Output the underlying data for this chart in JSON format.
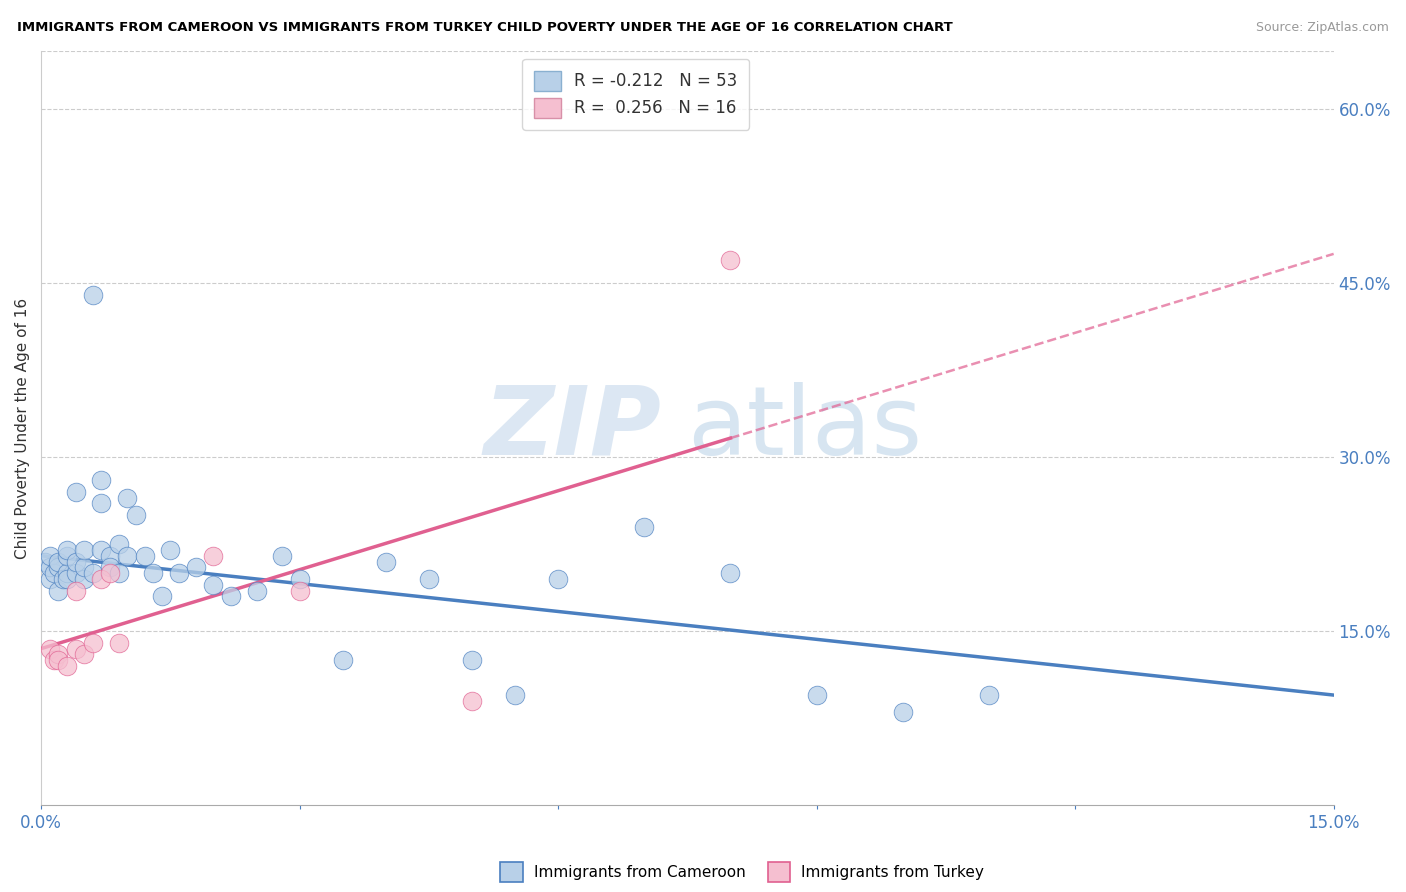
{
  "title": "IMMIGRANTS FROM CAMEROON VS IMMIGRANTS FROM TURKEY CHILD POVERTY UNDER THE AGE OF 16 CORRELATION CHART",
  "source": "Source: ZipAtlas.com",
  "ylabel": "Child Poverty Under the Age of 16",
  "legend_label1": "Immigrants from Cameroon",
  "legend_label2": "Immigrants from Turkey",
  "R1": -0.212,
  "N1": 53,
  "R2": 0.256,
  "N2": 16,
  "color1": "#b8d0e8",
  "color2": "#f5bfd0",
  "line_color1": "#4a7fc0",
  "line_color2": "#e06090",
  "xlim": [
    0,
    0.15
  ],
  "ylim": [
    0,
    0.65
  ],
  "yticks": [
    0.15,
    0.3,
    0.45,
    0.6
  ],
  "cameroon_x": [
    0.0005,
    0.001,
    0.001,
    0.001,
    0.0015,
    0.002,
    0.002,
    0.002,
    0.0025,
    0.003,
    0.003,
    0.003,
    0.003,
    0.004,
    0.004,
    0.004,
    0.005,
    0.005,
    0.005,
    0.006,
    0.006,
    0.007,
    0.007,
    0.007,
    0.008,
    0.008,
    0.009,
    0.009,
    0.01,
    0.01,
    0.011,
    0.012,
    0.013,
    0.014,
    0.015,
    0.016,
    0.018,
    0.02,
    0.022,
    0.025,
    0.028,
    0.03,
    0.035,
    0.04,
    0.045,
    0.05,
    0.055,
    0.06,
    0.07,
    0.08,
    0.09,
    0.1,
    0.11
  ],
  "cameroon_y": [
    0.21,
    0.195,
    0.205,
    0.215,
    0.2,
    0.185,
    0.205,
    0.21,
    0.195,
    0.2,
    0.215,
    0.195,
    0.22,
    0.2,
    0.21,
    0.27,
    0.195,
    0.205,
    0.22,
    0.2,
    0.44,
    0.28,
    0.22,
    0.26,
    0.215,
    0.205,
    0.225,
    0.2,
    0.265,
    0.215,
    0.25,
    0.215,
    0.2,
    0.18,
    0.22,
    0.2,
    0.205,
    0.19,
    0.18,
    0.185,
    0.215,
    0.195,
    0.125,
    0.21,
    0.195,
    0.125,
    0.095,
    0.195,
    0.24,
    0.2,
    0.095,
    0.08,
    0.095
  ],
  "turkey_x": [
    0.001,
    0.0015,
    0.002,
    0.002,
    0.003,
    0.004,
    0.004,
    0.005,
    0.006,
    0.007,
    0.008,
    0.009,
    0.02,
    0.03,
    0.05,
    0.08
  ],
  "turkey_y": [
    0.135,
    0.125,
    0.13,
    0.125,
    0.12,
    0.135,
    0.185,
    0.13,
    0.14,
    0.195,
    0.2,
    0.14,
    0.215,
    0.185,
    0.09,
    0.47
  ],
  "trendline1_x0": 0.0,
  "trendline1_x1": 0.15,
  "trendline1_y0": 0.215,
  "trendline1_y1": 0.095,
  "trendline2_x0": 0.0,
  "trendline2_x1": 0.15,
  "trendline2_y0": 0.135,
  "trendline2_y1": 0.475,
  "trendline2_solid_end": 0.08
}
